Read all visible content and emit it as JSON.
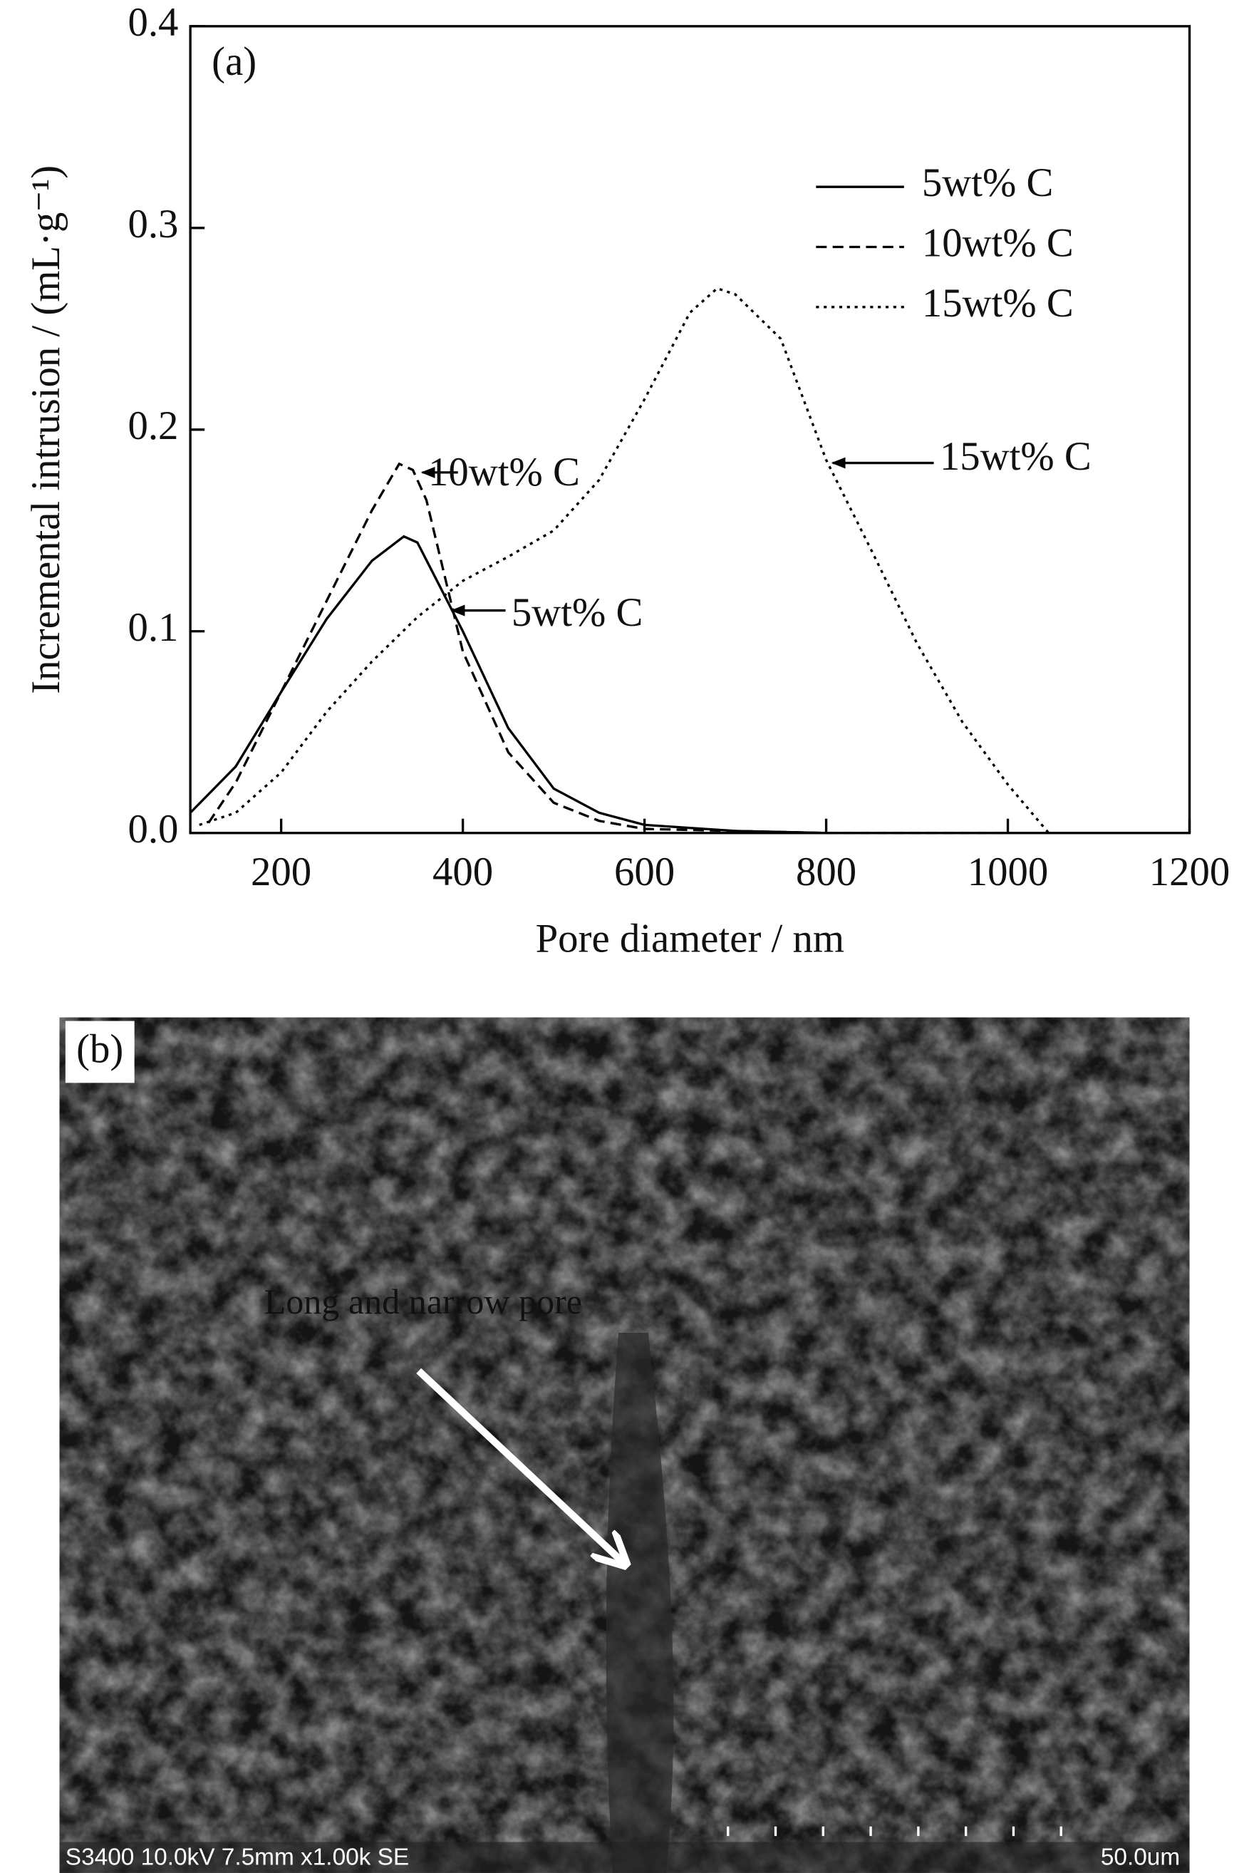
{
  "chart_data": {
    "type": "line",
    "panel_label": "(a)",
    "xlabel": "Pore diameter / nm",
    "ylabel": "Incremental intrusion / (mL·g⁻¹)",
    "xlim": [
      100,
      1200
    ],
    "xticks": [
      200,
      400,
      600,
      800,
      1000,
      1200
    ],
    "ylim": [
      0,
      0.4
    ],
    "yticks": [
      {
        "value": 0,
        "label": "0.0"
      },
      0.1,
      0.2,
      0.3,
      0.4
    ],
    "legend": "upper right",
    "series": [
      {
        "name": "5wt% C",
        "color": "#000000",
        "dash": "solid",
        "x": [
          100,
          150,
          200,
          250,
          300,
          335,
          350,
          400,
          450,
          500,
          550,
          600,
          700,
          800
        ],
        "values": [
          0.01,
          0.033,
          0.07,
          0.106,
          0.135,
          0.147,
          0.144,
          0.1,
          0.052,
          0.022,
          0.01,
          0.004,
          0.001,
          0
        ]
      },
      {
        "name": "10wt% C",
        "color": "#000000",
        "dash": "dashed",
        "x": [
          120,
          150,
          200,
          250,
          300,
          330,
          345,
          360,
          400,
          450,
          500,
          550,
          600,
          700,
          800,
          1000
        ],
        "values": [
          0.005,
          0.025,
          0.07,
          0.115,
          0.16,
          0.183,
          0.18,
          0.165,
          0.09,
          0.04,
          0.015,
          0.006,
          0.002,
          0.001,
          0,
          0
        ]
      },
      {
        "name": "15wt% C",
        "color": "#000000",
        "dash": "dotted",
        "x": [
          110,
          150,
          200,
          250,
          300,
          350,
          400,
          450,
          500,
          550,
          600,
          650,
          680,
          700,
          750,
          800,
          850,
          900,
          950,
          1000,
          1045
        ],
        "values": [
          0.004,
          0.01,
          0.03,
          0.06,
          0.085,
          0.107,
          0.125,
          0.137,
          0.15,
          0.175,
          0.215,
          0.258,
          0.27,
          0.267,
          0.245,
          0.185,
          0.14,
          0.094,
          0.055,
          0.024,
          0
        ]
      }
    ],
    "annotations": [
      "10wt% C",
      "5wt% C",
      "15wt% C"
    ]
  },
  "micrograph": {
    "panel_label": "(b)",
    "annotation": "Long and narrow pore",
    "info": "S3400 10.0kV 7.5mm x1.00k SE",
    "scale": "50.0um"
  }
}
